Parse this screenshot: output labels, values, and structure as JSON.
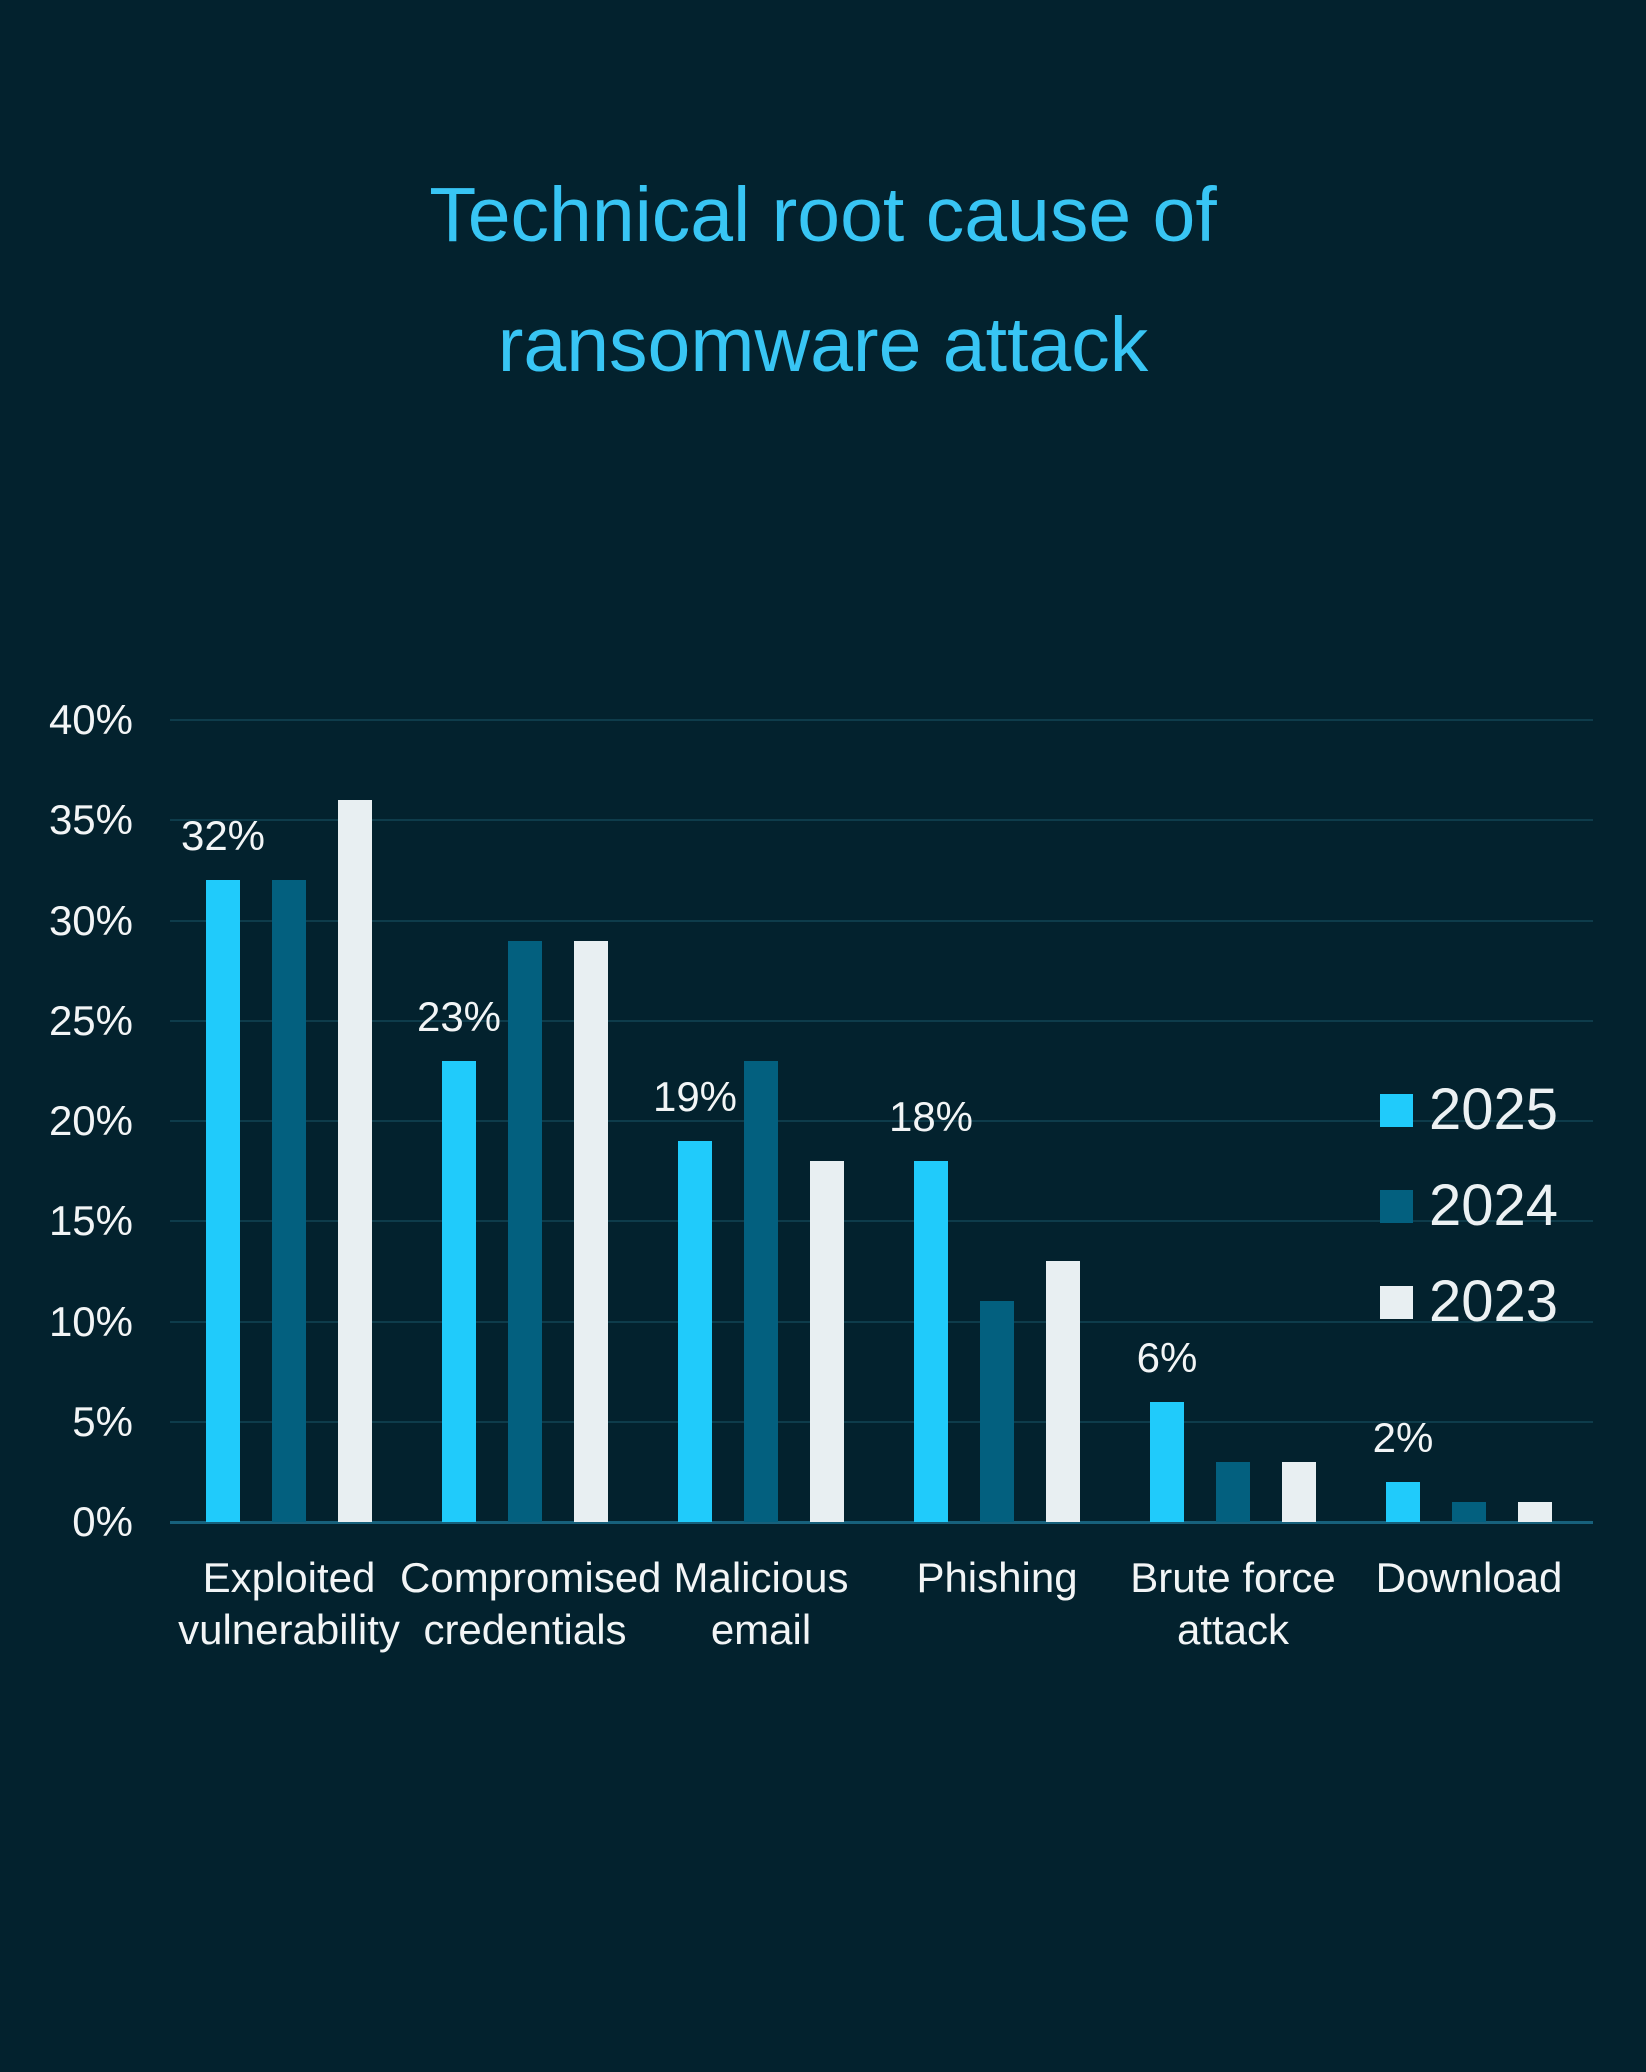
{
  "title": "Technical root cause of ransomware attack",
  "colors": {
    "background": "#03222E",
    "title": "#38C5F4",
    "grid": "#0E3C4B",
    "axis_line": "#17617C",
    "text": "#F2F5F6"
  },
  "legend": {
    "position": "right-middle",
    "entries": [
      {
        "label": "2025",
        "color": "#20CBFB"
      },
      {
        "label": "2024",
        "color": "#03607F"
      },
      {
        "label": "2023",
        "color": "#E8EFF2"
      }
    ]
  },
  "chart_data": {
    "type": "bar",
    "title": "Technical root cause of ransomware attack",
    "categories": [
      "Exploited vulnerability",
      "Compromised credentials",
      "Malicious email",
      "Phishing",
      "Brute force attack",
      "Download"
    ],
    "series": [
      {
        "name": "2025",
        "color": "#20CBFB",
        "values": [
          32,
          23,
          19,
          18,
          6,
          2
        ]
      },
      {
        "name": "2024",
        "color": "#03607F",
        "values": [
          32,
          29,
          23,
          11,
          3,
          1
        ]
      },
      {
        "name": "2023",
        "color": "#E8EFF2",
        "values": [
          36,
          29,
          18,
          13,
          3,
          1
        ]
      }
    ],
    "data_labels": [
      "32%",
      "23%",
      "19%",
      "18%",
      "6%",
      "2%"
    ],
    "data_labels_series": "2025",
    "xlabel": "",
    "ylabel": "",
    "y_ticks": [
      "40%",
      "35%",
      "30%",
      "25%",
      "20%",
      "15%",
      "10%",
      "5%",
      "0%"
    ],
    "ylim": [
      0,
      40
    ],
    "grid": "horizontal",
    "legend_position": "right"
  }
}
